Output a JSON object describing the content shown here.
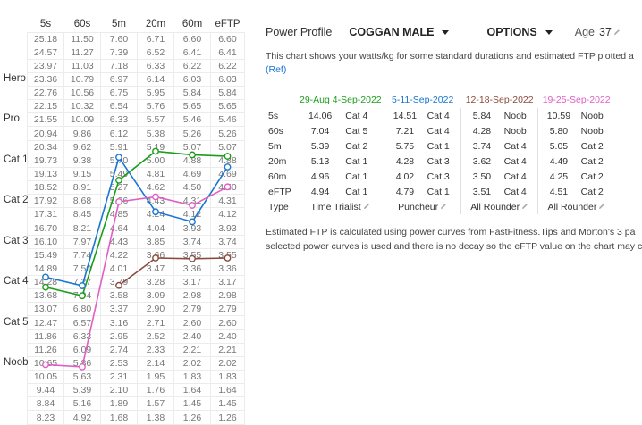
{
  "grid": {
    "columns": [
      "5s",
      "60s",
      "5m",
      "20m",
      "60m",
      "eFTP"
    ],
    "rows": [
      [
        "25.18",
        "11.50",
        "7.60",
        "6.71",
        "6.60",
        "6.60"
      ],
      [
        "24.57",
        "11.27",
        "7.39",
        "6.52",
        "6.41",
        "6.41"
      ],
      [
        "23.97",
        "11.03",
        "7.18",
        "6.33",
        "6.22",
        "6.22"
      ],
      [
        "23.36",
        "10.79",
        "6.97",
        "6.14",
        "6.03",
        "6.03"
      ],
      [
        "22.76",
        "10.56",
        "6.75",
        "5.95",
        "5.84",
        "5.84"
      ],
      [
        "22.15",
        "10.32",
        "6.54",
        "5.76",
        "5.65",
        "5.65"
      ],
      [
        "21.55",
        "10.09",
        "6.33",
        "5.57",
        "5.46",
        "5.46"
      ],
      [
        "20.94",
        "9.86",
        "6.12",
        "5.38",
        "5.26",
        "5.26"
      ],
      [
        "20.34",
        "9.62",
        "5.91",
        "5.19",
        "5.07",
        "5.07"
      ],
      [
        "19.73",
        "9.38",
        "5.70",
        "5.00",
        "4.88",
        "4.88"
      ],
      [
        "19.13",
        "9.15",
        "5.49",
        "4.81",
        "4.69",
        "4.69"
      ],
      [
        "18.52",
        "8.91",
        "5.27",
        "4.62",
        "4.50",
        "4.50"
      ],
      [
        "17.92",
        "8.68",
        "5.06",
        "4.43",
        "4.31",
        "4.31"
      ],
      [
        "17.31",
        "8.45",
        "4.85",
        "4.24",
        "4.12",
        "4.12"
      ],
      [
        "16.70",
        "8.21",
        "4.64",
        "4.04",
        "3.93",
        "3.93"
      ],
      [
        "16.10",
        "7.97",
        "4.43",
        "3.85",
        "3.74",
        "3.74"
      ],
      [
        "15.49",
        "7.74",
        "4.22",
        "3.66",
        "3.55",
        "3.55"
      ],
      [
        "14.89",
        "7.50",
        "4.01",
        "3.47",
        "3.36",
        "3.36"
      ],
      [
        "14.28",
        "7.27",
        "3.79",
        "3.28",
        "3.17",
        "3.17"
      ],
      [
        "13.68",
        "7.04",
        "3.58",
        "3.09",
        "2.98",
        "2.98"
      ],
      [
        "13.07",
        "6.80",
        "3.37",
        "2.90",
        "2.79",
        "2.79"
      ],
      [
        "12.47",
        "6.57",
        "3.16",
        "2.71",
        "2.60",
        "2.60"
      ],
      [
        "11.86",
        "6.33",
        "2.95",
        "2.52",
        "2.40",
        "2.40"
      ],
      [
        "11.26",
        "6.09",
        "2.74",
        "2.33",
        "2.21",
        "2.21"
      ],
      [
        "10.65",
        "5.86",
        "2.53",
        "2.14",
        "2.02",
        "2.02"
      ],
      [
        "10.05",
        "5.63",
        "2.31",
        "1.95",
        "1.83",
        "1.83"
      ],
      [
        "9.44",
        "5.39",
        "2.10",
        "1.76",
        "1.64",
        "1.64"
      ],
      [
        "8.84",
        "5.16",
        "1.89",
        "1.57",
        "1.45",
        "1.45"
      ],
      [
        "8.23",
        "4.92",
        "1.68",
        "1.38",
        "1.26",
        "1.26"
      ]
    ],
    "levels": [
      {
        "label": "Hero",
        "row": 3
      },
      {
        "label": "Pro",
        "row": 6
      },
      {
        "label": "Cat 1",
        "row": 9
      },
      {
        "label": "Cat 2",
        "row": 12
      },
      {
        "label": "Cat 3",
        "row": 15
      },
      {
        "label": "Cat 4",
        "row": 18
      },
      {
        "label": "Cat 5",
        "row": 21
      },
      {
        "label": "Noob",
        "row": 24
      }
    ]
  },
  "chart_data": {
    "type": "line",
    "x": [
      "5s",
      "60s",
      "5m",
      "20m",
      "60m",
      "eFTP"
    ],
    "series": [
      {
        "name": "29-Aug 4-Sep-2022",
        "color": "#1a9e1a",
        "values": [
          14.06,
          7.04,
          5.39,
          5.13,
          4.96,
          4.94
        ]
      },
      {
        "name": "5-11-Sep-2022",
        "color": "#1976d2",
        "values": [
          14.51,
          7.21,
          5.75,
          4.28,
          4.02,
          4.79
        ]
      },
      {
        "name": "12-18-Sep-2022",
        "color": "#8b4a3c",
        "values": [
          null,
          null,
          3.74,
          3.62,
          3.5,
          3.51
        ]
      },
      {
        "name": "19-25-Sep-2022",
        "color": "#e05fc4",
        "values": [
          10.59,
          5.8,
          5.05,
          4.49,
          4.25,
          4.51
        ]
      }
    ]
  },
  "header": {
    "title": "Power Profile",
    "profile": "COGGAN MALE",
    "options": "OPTIONS",
    "age_label": "Age",
    "age_value": "37"
  },
  "description": {
    "line1": "This chart shows your watts/kg for some standard durations and estimated FTP plotted a",
    "ref": "(Ref)"
  },
  "results": {
    "periods": [
      {
        "label": "29-Aug 4-Sep-2022",
        "color": "#1a9e1a"
      },
      {
        "label": "5-11-Sep-2022",
        "color": "#1976d2"
      },
      {
        "label": "12-18-Sep-2022",
        "color": "#8b4a3c"
      },
      {
        "label": "19-25-Sep-2022",
        "color": "#e05fc4"
      }
    ],
    "rows": [
      {
        "label": "5s",
        "cells": [
          [
            "14.06",
            "Cat 4"
          ],
          [
            "14.51",
            "Cat 4"
          ],
          [
            "5.84",
            "Noob"
          ],
          [
            "10.59",
            "Noob"
          ]
        ]
      },
      {
        "label": "60s",
        "cells": [
          [
            "7.04",
            "Cat 5"
          ],
          [
            "7.21",
            "Cat 4"
          ],
          [
            "4.28",
            "Noob"
          ],
          [
            "5.80",
            "Noob"
          ]
        ]
      },
      {
        "label": "5m",
        "cells": [
          [
            "5.39",
            "Cat 2"
          ],
          [
            "5.75",
            "Cat 1"
          ],
          [
            "3.74",
            "Cat 4"
          ],
          [
            "5.05",
            "Cat 2"
          ]
        ]
      },
      {
        "label": "20m",
        "cells": [
          [
            "5.13",
            "Cat 1"
          ],
          [
            "4.28",
            "Cat 3"
          ],
          [
            "3.62",
            "Cat 4"
          ],
          [
            "4.49",
            "Cat 2"
          ]
        ]
      },
      {
        "label": "60m",
        "cells": [
          [
            "4.96",
            "Cat 1"
          ],
          [
            "4.02",
            "Cat 3"
          ],
          [
            "3.50",
            "Cat 4"
          ],
          [
            "4.25",
            "Cat 2"
          ]
        ]
      },
      {
        "label": "eFTP",
        "cells": [
          [
            "4.94",
            "Cat 1"
          ],
          [
            "4.79",
            "Cat 1"
          ],
          [
            "3.51",
            "Cat 4"
          ],
          [
            "4.51",
            "Cat 2"
          ]
        ]
      }
    ],
    "type_label": "Type",
    "types": [
      "Time Trialist",
      "Puncheur",
      "All Rounder",
      "All Rounder"
    ]
  },
  "footer": {
    "line1": "Estimated FTP is calculated using power curves from FastFitness.Tips and Morton's 3 pa",
    "line2": "selected power curves is used and there is no decay so the eFTP value on the chart may c"
  }
}
